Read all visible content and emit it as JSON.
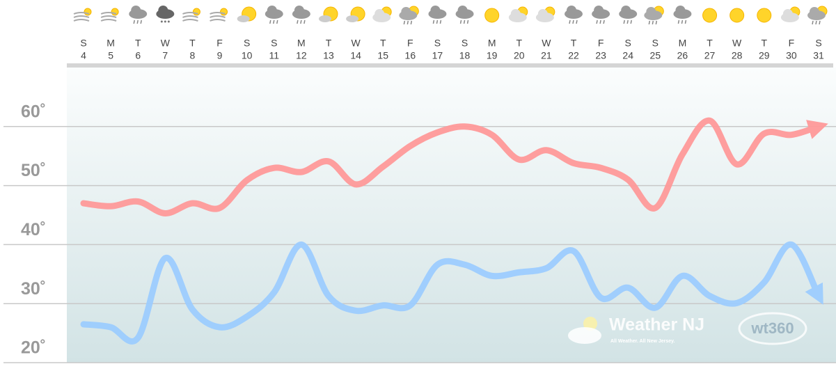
{
  "chart_data": {
    "type": "line",
    "weekdays": [
      "S",
      "M",
      "T",
      "W",
      "T",
      "F",
      "S",
      "S",
      "M",
      "T",
      "W",
      "T",
      "F",
      "S",
      "S",
      "M",
      "T",
      "W",
      "T",
      "F",
      "S",
      "S",
      "M",
      "T",
      "W",
      "T",
      "F",
      "S"
    ],
    "categories": [
      "4",
      "5",
      "6",
      "7",
      "8",
      "9",
      "10",
      "11",
      "12",
      "13",
      "14",
      "15",
      "16",
      "17",
      "18",
      "19",
      "20",
      "21",
      "22",
      "23",
      "24",
      "25",
      "26",
      "27",
      "28",
      "29",
      "30",
      "31"
    ],
    "icons": [
      "wind",
      "wind",
      "rain",
      "snow",
      "wind",
      "wind",
      "sun-cloud",
      "rain",
      "rain",
      "sun-cloud",
      "sun-cloud",
      "cloud-sun",
      "sun-rain",
      "rain",
      "rain",
      "sun",
      "cloud-sun",
      "cloud-sun",
      "rain",
      "rain",
      "rain",
      "sun-rain",
      "rain",
      "sun",
      "sun",
      "sun",
      "cloud-sun",
      "sun-rain"
    ],
    "series": [
      {
        "color": "#ff9a9a",
        "values": [
          47,
          46.5,
          47.3,
          45.3,
          47,
          46.2,
          50.9,
          53,
          52.3,
          54.1,
          50.2,
          53.2,
          56.7,
          59,
          60,
          58.6,
          54.4,
          56,
          53.8,
          53,
          51,
          46.2,
          55.3,
          61,
          53.6,
          58.8,
          58.6,
          60
        ]
      },
      {
        "color": "#9dcdff",
        "values": [
          26.5,
          26,
          24.2,
          37.7,
          29,
          26,
          27.8,
          31.9,
          40,
          31.3,
          28.8,
          29.7,
          29.7,
          36.6,
          36.6,
          34.7,
          35.3,
          36,
          38.9,
          31,
          32.7,
          29.3,
          34.7,
          31.3,
          30.1,
          33.6,
          40,
          31.3
        ]
      }
    ],
    "ylim": [
      20,
      70
    ],
    "yticks": [
      {
        "value": 20,
        "label": "20˚"
      },
      {
        "value": 30,
        "label": "30˚"
      },
      {
        "value": 40,
        "label": "40˚"
      },
      {
        "value": 50,
        "label": "50˚"
      },
      {
        "value": 60,
        "label": "60˚"
      }
    ],
    "grid": true,
    "watermark": {
      "title": "Weather NJ",
      "tagline": "All Weather. All New Jersey.",
      "brand": "wt360"
    }
  }
}
